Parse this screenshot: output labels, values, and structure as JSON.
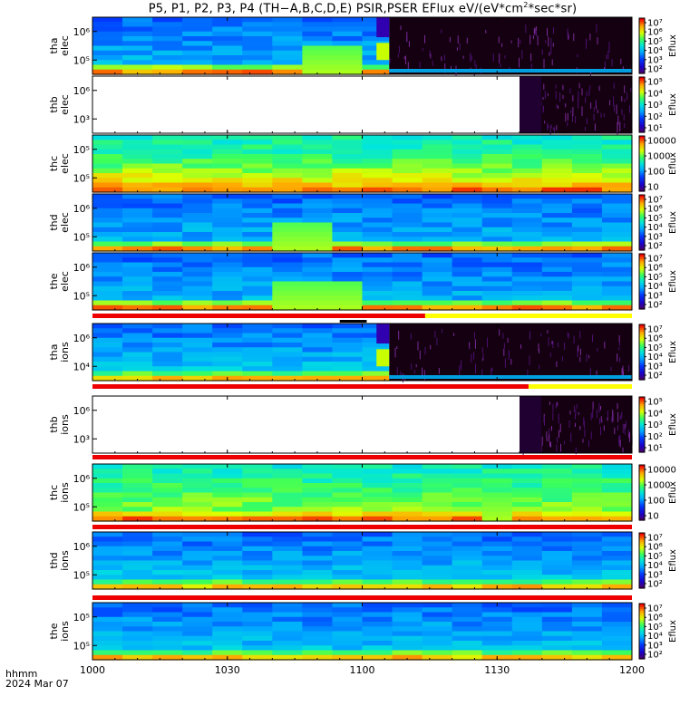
{
  "title_parts": {
    "pre": "P5, P1, P2, P3, P4 (TH−A,B,C,D,E) PSIR,PSER EFlux eV/(eV*cm",
    "sup": "2",
    "post": "*sec*sr)"
  },
  "footer": {
    "time_label": "hhmm",
    "date_label": "2024 Mar 07"
  },
  "colors": {
    "bar_red": "#ee0000",
    "bar_yellow": "#ffff00",
    "bar_black": "#000000",
    "nodata_bg": "#140010"
  },
  "chart_data": {
    "type": "heatmap",
    "x_ticks": [
      "1000",
      "1030",
      "1100",
      "1130",
      "1200"
    ],
    "x_range": [
      "10:00",
      "12:00"
    ],
    "colorbar_label": "Eflux",
    "panels": [
      {
        "id": "tha_elec",
        "ylabel": [
          "tha",
          "elec"
        ],
        "yticks": [
          "10⁶",
          "10⁵"
        ],
        "colorbar_ticks": [
          "10⁷",
          "10⁶",
          "10⁵",
          "10⁴",
          "10³",
          "10²"
        ],
        "data_end": "11:06",
        "profile": "magnetosphere",
        "burst": [
          "10:50",
          "11:00"
        ],
        "status_bar": []
      },
      {
        "id": "thb_elec",
        "ylabel": [
          "thb",
          "elec"
        ],
        "yticks": [
          "10⁶",
          "10³"
        ],
        "colorbar_ticks": [
          "10⁵",
          "10⁴",
          "10³",
          "10²",
          "10¹"
        ],
        "data_start": "11:35",
        "profile": "sparse",
        "status_bar": []
      },
      {
        "id": "thc_elec",
        "ylabel": [
          "thc",
          "elec"
        ],
        "yticks": [
          "10⁵",
          "10⁵"
        ],
        "colorbar_ticks": [
          "10000",
          "1000",
          "100",
          "10"
        ],
        "profile": "sheath",
        "status_bar": []
      },
      {
        "id": "thd_elec",
        "ylabel": [
          "thd",
          "elec"
        ],
        "yticks": [
          "10⁶",
          "10⁵"
        ],
        "colorbar_ticks": [
          "10⁷",
          "10⁶",
          "10⁵",
          "10⁴",
          "10³",
          "10²"
        ],
        "profile": "magnetosphere",
        "burst": [
          "10:42",
          "10:54"
        ],
        "status_bar": []
      },
      {
        "id": "the_elec",
        "ylabel": [
          "the",
          "elec"
        ],
        "yticks": [
          "10⁶",
          "10⁵"
        ],
        "colorbar_ticks": [
          "10⁷",
          "10⁶",
          "10⁵",
          "10⁴",
          "10³",
          "10²"
        ],
        "profile": "magnetosphere",
        "burst": [
          "10:42",
          "11:00"
        ],
        "status_bar": [
          {
            "color": "red",
            "from": "10:00",
            "to": "11:14",
            "row": 0
          },
          {
            "color": "yellow",
            "from": "11:14",
            "to": "12:00",
            "row": 0
          },
          {
            "color": "black",
            "from": "10:55",
            "to": "11:01",
            "row": 1
          }
        ]
      },
      {
        "id": "tha_ions",
        "ylabel": [
          "tha",
          "ions"
        ],
        "yticks": [
          "10⁶",
          "10⁴"
        ],
        "colorbar_ticks": [
          "10⁷",
          "10⁶",
          "10⁵",
          "10⁴",
          "10³",
          "10²"
        ],
        "data_end": "11:06",
        "profile": "magnetosphere_ions",
        "status_bar": [
          {
            "color": "red",
            "from": "10:00",
            "to": "11:37",
            "row": 0
          },
          {
            "color": "yellow",
            "from": "11:37",
            "to": "12:00",
            "row": 0
          }
        ]
      },
      {
        "id": "thb_ions",
        "ylabel": [
          "thb",
          "ions"
        ],
        "yticks": [
          "10⁶",
          "10³"
        ],
        "colorbar_ticks": [
          "10⁵",
          "10⁴",
          "10³",
          "10²",
          "10¹"
        ],
        "data_start": "11:35",
        "profile": "sparse",
        "status_bar": [
          {
            "color": "red",
            "from": "10:00",
            "to": "12:00",
            "row": 0
          }
        ]
      },
      {
        "id": "thc_ions",
        "ylabel": [
          "thc",
          "ions"
        ],
        "yticks": [
          "10⁶",
          "10⁵"
        ],
        "colorbar_ticks": [
          "10000",
          "1000",
          "100",
          "10"
        ],
        "profile": "sheath_ions",
        "burst": [
          "11:28",
          "11:35"
        ],
        "status_bar": [
          {
            "color": "red",
            "from": "10:00",
            "to": "12:00",
            "row": 0
          }
        ]
      },
      {
        "id": "thd_ions",
        "ylabel": [
          "thd",
          "ions"
        ],
        "yticks": [
          "10⁶",
          "10⁵"
        ],
        "colorbar_ticks": [
          "10⁷",
          "10⁶",
          "10⁵",
          "10⁴",
          "10³",
          "10²"
        ],
        "profile": "magnetosphere_ions",
        "status_bar": [
          {
            "color": "red",
            "from": "10:00",
            "to": "12:00",
            "row": 0
          }
        ]
      },
      {
        "id": "the_ions",
        "ylabel": [
          "the",
          "ions"
        ],
        "yticks": [
          "10⁵",
          "10⁵"
        ],
        "colorbar_ticks": [
          "10⁷",
          "10⁶",
          "10⁵",
          "10⁴",
          "10³",
          "10²"
        ],
        "profile": "magnetosphere_ions",
        "status_bar": []
      }
    ]
  }
}
